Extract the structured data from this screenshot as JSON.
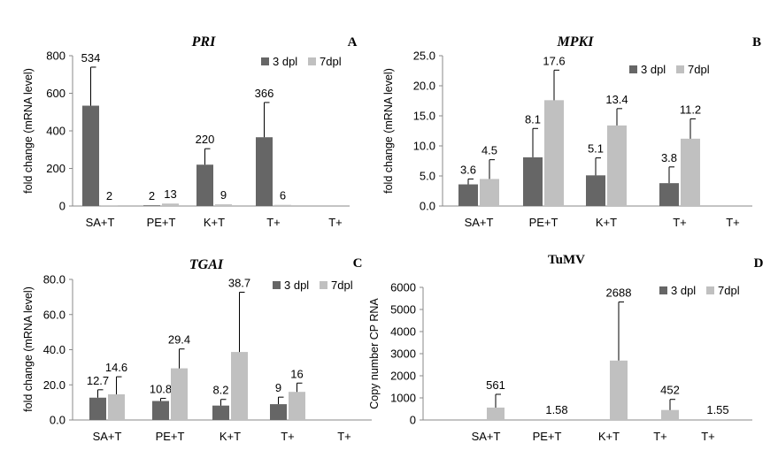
{
  "colors": {
    "dpl3": "#666666",
    "dpl7": "#c0c0c0"
  },
  "chart_data": [
    {
      "type": "bar",
      "title": "PRI",
      "panel_letter": "A",
      "ylabel": "fold change (mRNA level)",
      "categories": [
        "SA+T",
        "PE+T",
        "K+T",
        "T+",
        "T+"
      ],
      "yticks": [
        "0",
        "200",
        "400",
        "600",
        "800"
      ],
      "ylim": [
        0,
        800
      ],
      "legend": "top-right",
      "series": [
        {
          "name": "3 dpl",
          "values": [
            534,
            2,
            220,
            366,
            null
          ],
          "errors": [
            205,
            0,
            85,
            185,
            null
          ],
          "labels": [
            "534",
            "2",
            "220",
            "366",
            ""
          ]
        },
        {
          "name": "7dpl",
          "values": [
            2,
            13,
            9,
            6,
            null
          ],
          "errors": [
            0,
            0,
            0,
            0,
            null
          ],
          "labels": [
            "2",
            "13",
            "9",
            "6",
            ""
          ]
        }
      ]
    },
    {
      "type": "bar",
      "title": "MPKI",
      "panel_letter": "B",
      "ylabel": "fold change (mRNA level)",
      "categories": [
        "SA+T",
        "PE+T",
        "K+T",
        "T+",
        "T+"
      ],
      "yticks": [
        "0.0",
        "5.0",
        "10.0",
        "15.0",
        "20.0",
        "25.0"
      ],
      "ylim": [
        0,
        25
      ],
      "legend": "top-right",
      "series": [
        {
          "name": "3 dpl",
          "values": [
            3.6,
            8.1,
            5.1,
            3.8,
            null
          ],
          "errors": [
            0.9,
            4.8,
            2.9,
            2.7,
            null
          ],
          "labels": [
            "3.6",
            "8.1",
            "5.1",
            "3.8",
            ""
          ]
        },
        {
          "name": "7dpl",
          "values": [
            4.5,
            17.6,
            13.4,
            11.2,
            null
          ],
          "errors": [
            3.2,
            5.0,
            2.8,
            3.3,
            null
          ],
          "labels": [
            "4.5",
            "17.6",
            "13.4",
            "11.2",
            ""
          ]
        }
      ]
    },
    {
      "type": "bar",
      "title": "TGAI",
      "panel_letter": "C",
      "ylabel": "fold change (mRNA level)",
      "categories": [
        "SA+T",
        "PE+T",
        "K+T",
        "T+",
        "T+"
      ],
      "yticks": [
        "0.0",
        "20.0",
        "40.0",
        "60.0",
        "80.0"
      ],
      "ylim": [
        0,
        80
      ],
      "legend": "top-right",
      "series": [
        {
          "name": "3 dpl",
          "values": [
            12.7,
            10.8,
            8.2,
            9,
            null
          ],
          "errors": [
            4.5,
            1.5,
            3.5,
            4.0,
            null
          ],
          "labels": [
            "12.7",
            "10.8",
            "8.2",
            "9",
            ""
          ]
        },
        {
          "name": "7dpl",
          "values": [
            14.6,
            29.4,
            38.7,
            16,
            null
          ],
          "errors": [
            10,
            11,
            34,
            5,
            null
          ],
          "labels": [
            "14.6",
            "29.4",
            "38.7",
            "16",
            ""
          ]
        }
      ]
    },
    {
      "type": "bar",
      "title": "TuMV",
      "panel_letter": "D",
      "ylabel": "Copy number CP RNA",
      "categories": [
        "SA+T",
        "PE+T",
        "K+T",
        "T+",
        "T+"
      ],
      "yticks": [
        "0",
        "1000",
        "2000",
        "3000",
        "4000",
        "5000",
        "6000"
      ],
      "ylim": [
        0,
        6000
      ],
      "legend": "top-right",
      "series": [
        {
          "name": "3 dpl",
          "values": [
            null,
            null,
            null,
            null,
            null
          ],
          "errors": [
            null,
            null,
            null,
            null,
            null
          ],
          "labels": [
            "",
            "",
            "",
            "",
            ""
          ]
        },
        {
          "name": "7dpl",
          "values": [
            561,
            1.58,
            2688,
            452,
            1.55
          ],
          "errors": [
            600,
            0,
            2650,
            480,
            0
          ],
          "labels": [
            "561",
            "1.58",
            "2688",
            "452",
            "1.55"
          ]
        }
      ]
    }
  ]
}
